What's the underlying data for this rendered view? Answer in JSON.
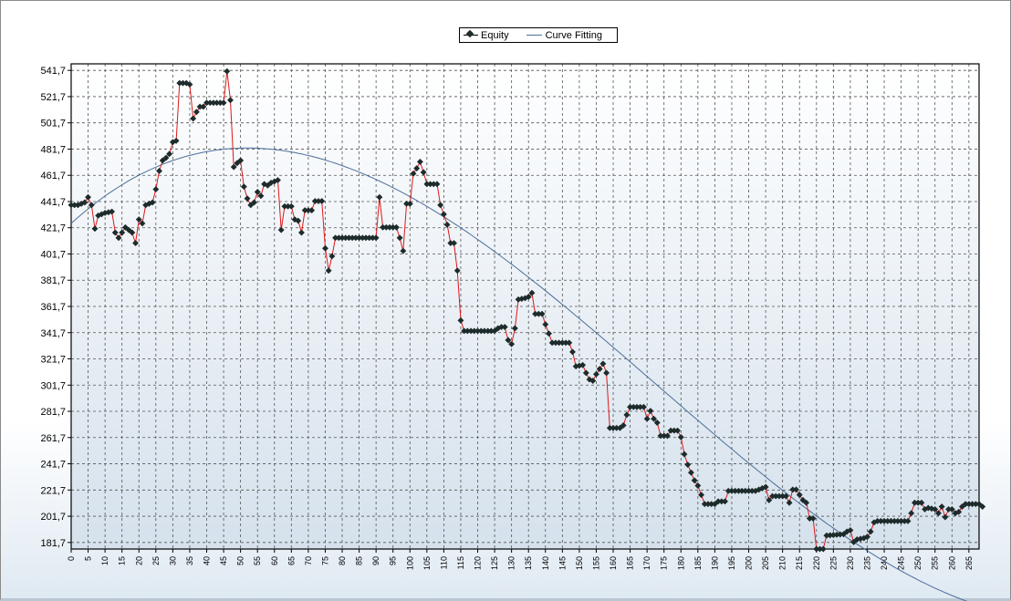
{
  "legend": {
    "equity_label": "Equity",
    "curve_label": "Curve Fitting"
  },
  "colors": {
    "equity_line": "#e01818",
    "marker": "#1e2b2b",
    "curve": "#4c6e9a",
    "grid": "#555555",
    "plot_bg_top": "#ffffff",
    "plot_bg_bottom": "#d5e1ec"
  },
  "chart_data": {
    "type": "line",
    "title": "",
    "xlabel": "",
    "ylabel": "",
    "xlim": [
      0,
      268
    ],
    "ylim": [
      176.7,
      546.7
    ],
    "yticks": [
      "181,7",
      "201,7",
      "221,7",
      "241,7",
      "261,7",
      "281,7",
      "301,7",
      "321,7",
      "341,7",
      "361,7",
      "381,7",
      "401,7",
      "421,7",
      "441,7",
      "461,7",
      "481,7",
      "501,7",
      "521,7",
      "541,7"
    ],
    "xticks": [
      "0",
      "5",
      "10",
      "15",
      "20",
      "25",
      "30",
      "35",
      "40",
      "45",
      "50",
      "55",
      "60",
      "65",
      "70",
      "75",
      "80",
      "85",
      "90",
      "95",
      "100",
      "105",
      "110",
      "115",
      "120",
      "125",
      "130",
      "135",
      "140",
      "145",
      "150",
      "155",
      "160",
      "165",
      "170",
      "175",
      "180",
      "185",
      "190",
      "195",
      "200",
      "205",
      "210",
      "215",
      "220",
      "225",
      "230",
      "235",
      "240",
      "245",
      "250",
      "255",
      "260",
      "265"
    ],
    "grid": true,
    "legend_position": "top-center",
    "markers": "diamond",
    "series": [
      {
        "name": "Equity",
        "points": [
          [
            0,
            439
          ],
          [
            2,
            439
          ],
          [
            4,
            441
          ],
          [
            5,
            445
          ],
          [
            6,
            439
          ],
          [
            7,
            421
          ],
          [
            8,
            431
          ],
          [
            10,
            433
          ],
          [
            12,
            434
          ],
          [
            13,
            418
          ],
          [
            14,
            414
          ],
          [
            15,
            418
          ],
          [
            16,
            422
          ],
          [
            17,
            420
          ],
          [
            18,
            418
          ],
          [
            19,
            410
          ],
          [
            20,
            428
          ],
          [
            21,
            425
          ],
          [
            22,
            439
          ],
          [
            23,
            440
          ],
          [
            24,
            441
          ],
          [
            25,
            451
          ],
          [
            26,
            465
          ],
          [
            27,
            473
          ],
          [
            28,
            475
          ],
          [
            29,
            478
          ],
          [
            30,
            487
          ],
          [
            31,
            488
          ],
          [
            32,
            532
          ],
          [
            34,
            532
          ],
          [
            35,
            531
          ],
          [
            36,
            505
          ],
          [
            37,
            510
          ],
          [
            38,
            514
          ],
          [
            39,
            514
          ],
          [
            40,
            517
          ],
          [
            45,
            517
          ],
          [
            46,
            541
          ],
          [
            47,
            519
          ],
          [
            48,
            468
          ],
          [
            49,
            471
          ],
          [
            50,
            473
          ],
          [
            51,
            453
          ],
          [
            52,
            444
          ],
          [
            53,
            439
          ],
          [
            54,
            441
          ],
          [
            55,
            449
          ],
          [
            56,
            446
          ],
          [
            57,
            455
          ],
          [
            58,
            454
          ],
          [
            59,
            456
          ],
          [
            60,
            457
          ],
          [
            61,
            458
          ],
          [
            62,
            420
          ],
          [
            63,
            438
          ],
          [
            65,
            438
          ],
          [
            66,
            428
          ],
          [
            67,
            427
          ],
          [
            68,
            418
          ],
          [
            69,
            435
          ],
          [
            71,
            435
          ],
          [
            72,
            442
          ],
          [
            74,
            442
          ],
          [
            75,
            406
          ],
          [
            76,
            389
          ],
          [
            77,
            400
          ],
          [
            78,
            414
          ],
          [
            90,
            414
          ],
          [
            91,
            445
          ],
          [
            92,
            422
          ],
          [
            96,
            422
          ],
          [
            97,
            414
          ],
          [
            98,
            404
          ],
          [
            99,
            440
          ],
          [
            100,
            440
          ],
          [
            101,
            463
          ],
          [
            102,
            467
          ],
          [
            103,
            472
          ],
          [
            104,
            464
          ],
          [
            105,
            455
          ],
          [
            108,
            455
          ],
          [
            109,
            439
          ],
          [
            110,
            432
          ],
          [
            111,
            424
          ],
          [
            112,
            410
          ],
          [
            113,
            410
          ],
          [
            114,
            389
          ],
          [
            115,
            351
          ],
          [
            116,
            343
          ],
          [
            125,
            343
          ],
          [
            126,
            345
          ],
          [
            127,
            346
          ],
          [
            128,
            346
          ],
          [
            129,
            336
          ],
          [
            130,
            333
          ],
          [
            131,
            345
          ],
          [
            132,
            367
          ],
          [
            134,
            368
          ],
          [
            135,
            369
          ],
          [
            136,
            372
          ],
          [
            137,
            356
          ],
          [
            139,
            356
          ],
          [
            140,
            348
          ],
          [
            141,
            341
          ],
          [
            142,
            334
          ],
          [
            147,
            334
          ],
          [
            148,
            327
          ],
          [
            149,
            316
          ],
          [
            151,
            317
          ],
          [
            152,
            311
          ],
          [
            153,
            306
          ],
          [
            154,
            305
          ],
          [
            155,
            310
          ],
          [
            156,
            314
          ],
          [
            157,
            318
          ],
          [
            158,
            311
          ],
          [
            159,
            269
          ],
          [
            162,
            269
          ],
          [
            163,
            271
          ],
          [
            164,
            279
          ],
          [
            165,
            285
          ],
          [
            169,
            285
          ],
          [
            170,
            276
          ],
          [
            171,
            282
          ],
          [
            172,
            276
          ],
          [
            173,
            273
          ],
          [
            174,
            263
          ],
          [
            176,
            263
          ],
          [
            177,
            267
          ],
          [
            179,
            267
          ],
          [
            180,
            262
          ],
          [
            181,
            249
          ],
          [
            182,
            241
          ],
          [
            183,
            235
          ],
          [
            184,
            229
          ],
          [
            185,
            225
          ],
          [
            186,
            218
          ],
          [
            187,
            211
          ],
          [
            190,
            211
          ],
          [
            191,
            213
          ],
          [
            193,
            213
          ],
          [
            194,
            221
          ],
          [
            202,
            221
          ],
          [
            204,
            223
          ],
          [
            205,
            224
          ],
          [
            206,
            214
          ],
          [
            207,
            217
          ],
          [
            211,
            217
          ],
          [
            212,
            212
          ],
          [
            213,
            222
          ],
          [
            214,
            222
          ],
          [
            215,
            218
          ],
          [
            216,
            214
          ],
          [
            217,
            212
          ],
          [
            218,
            200
          ],
          [
            219,
            200
          ],
          [
            220,
            173
          ],
          [
            222,
            173
          ],
          [
            223,
            187
          ],
          [
            228,
            188
          ],
          [
            229,
            190
          ],
          [
            230,
            191
          ],
          [
            231,
            182
          ],
          [
            232,
            184
          ],
          [
            234,
            185
          ],
          [
            235,
            186
          ],
          [
            236,
            190
          ],
          [
            237,
            197
          ],
          [
            238,
            198
          ],
          [
            247,
            198
          ],
          [
            248,
            204
          ],
          [
            249,
            212
          ],
          [
            251,
            212
          ],
          [
            252,
            207
          ],
          [
            253,
            208
          ],
          [
            255,
            207
          ],
          [
            256,
            204
          ],
          [
            257,
            209
          ],
          [
            258,
            201
          ],
          [
            259,
            207
          ],
          [
            260,
            207
          ],
          [
            261,
            204
          ],
          [
            262,
            205
          ],
          [
            263,
            209
          ],
          [
            264,
            211
          ],
          [
            268,
            211
          ],
          [
            269,
            209
          ]
        ]
      },
      {
        "name": "Curve Fitting",
        "type": "polynomial",
        "coefficients_cubic_in_x": [
          425.0,
          2.35,
          -0.0266,
          5.14e-05
        ],
        "x_range": [
          0,
          269
        ]
      }
    ]
  }
}
